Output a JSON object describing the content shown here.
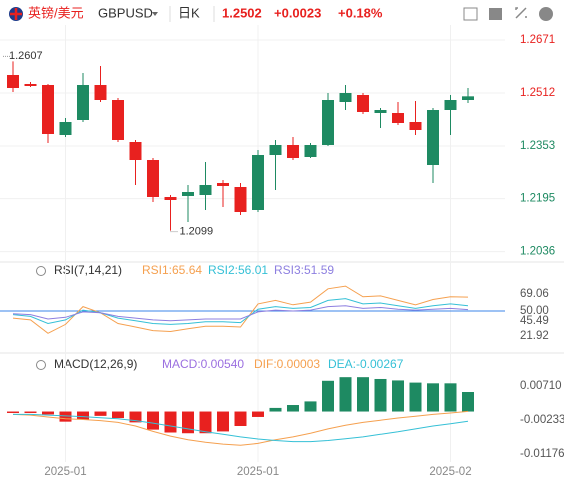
{
  "header": {
    "name": "英镑/美元",
    "symbol": "GBPUSD",
    "period": "日K",
    "price": "1.2502",
    "change": "+0.0023",
    "change_pct": "+0.18%"
  },
  "chart_data": [
    {
      "type": "candlestick",
      "categories": [
        null,
        null,
        null,
        "2025-01",
        null,
        null,
        null,
        null,
        null,
        null,
        null,
        null,
        null,
        null,
        "2025-01",
        null,
        null,
        null,
        null,
        null,
        null,
        null,
        null,
        null,
        null,
        "2025-02",
        null
      ],
      "open": [
        1.2566,
        1.2539,
        1.2536,
        1.2386,
        1.2431,
        1.2536,
        1.2491,
        1.2365,
        1.2311,
        1.22,
        1.2203,
        1.2206,
        1.2242,
        1.223,
        1.2161,
        1.2326,
        1.2356,
        1.232,
        1.2356,
        1.2485,
        1.2506,
        1.2452,
        1.2452,
        1.2425,
        1.2296,
        1.2461,
        1.2491
      ],
      "high": [
        1.2607,
        1.2545,
        1.2539,
        1.2437,
        1.2572,
        1.2593,
        1.2497,
        1.2371,
        1.2317,
        1.2206,
        1.2236,
        1.2305,
        1.2251,
        1.2242,
        1.2341,
        1.2371,
        1.238,
        1.2362,
        1.2512,
        1.2536,
        1.2512,
        1.2467,
        1.2485,
        1.2488,
        1.2467,
        1.2506,
        1.2527
      ],
      "low": [
        1.2515,
        1.253,
        1.2362,
        1.238,
        1.2425,
        1.2485,
        1.2365,
        1.2236,
        1.2185,
        1.2099,
        1.2125,
        1.2161,
        1.217,
        1.2146,
        1.2155,
        1.2221,
        1.2311,
        1.2317,
        1.2353,
        1.2461,
        1.2449,
        1.2407,
        1.2416,
        1.2386,
        1.2242,
        1.2386,
        1.2482
      ],
      "close": [
        1.2527,
        1.2533,
        1.2389,
        1.2425,
        1.2536,
        1.2491,
        1.2371,
        1.2311,
        1.22,
        1.2191,
        1.2215,
        1.2236,
        1.2233,
        1.2155,
        1.2326,
        1.2356,
        1.2317,
        1.2356,
        1.2491,
        1.2512,
        1.2455,
        1.2461,
        1.2422,
        1.2401,
        1.2461,
        1.2491,
        1.2502
      ],
      "up_color": "#1e8a62",
      "down_color": "#e8211f",
      "ylim": [
        1.2017,
        1.2716
      ],
      "yticks": [
        1.2671,
        1.2512,
        1.2353,
        1.2195,
        1.2036
      ],
      "annotations": [
        "1.2607",
        "1.2099"
      ],
      "grid": true
    },
    {
      "type": "line",
      "title": "RSI(7,14,21)",
      "series": [
        {
          "name": "RSI1:65.64",
          "color": "#f5a04f",
          "values": [
            42,
            40,
            25,
            35,
            55,
            48,
            36,
            32,
            28,
            27,
            30,
            33,
            33,
            32,
            58,
            62,
            57,
            60,
            75,
            78,
            66,
            67,
            62,
            57,
            63,
            66,
            65.64
          ]
        },
        {
          "name": "RSI2:56.01",
          "color": "#35c0d6",
          "values": [
            46,
            44,
            36,
            40,
            51,
            48,
            42,
            39,
            36,
            35,
            36,
            38,
            38,
            37,
            52,
            55,
            53,
            54,
            62,
            64,
            58,
            59,
            56,
            53,
            56,
            58,
            56.01
          ]
        },
        {
          "name": "RSI3:51.59",
          "color": "#8d7fe0",
          "values": [
            47,
            46,
            41,
            43,
            49,
            48,
            44,
            42,
            40,
            39,
            40,
            41,
            41,
            41,
            49,
            51,
            50,
            51,
            55,
            56,
            53,
            54,
            52,
            51,
            52,
            53,
            51.59
          ]
        }
      ],
      "ylim": [
        6.2,
        81.5
      ],
      "yticks": [
        69.06,
        {
          "value": 50,
          "label": "50.00"
        },
        45.49,
        21.92
      ],
      "reference_line": 50,
      "reference_color": "#3b86e8"
    },
    {
      "type": "macd",
      "title": "MACD(12,26,9)",
      "bars": {
        "name": "MACD:0.00540",
        "color": "#9b6fe0",
        "up_color": "#1e8a62",
        "down_color": "#e8211f",
        "values": [
          -0.0004,
          -0.0004,
          -0.0008,
          -0.0028,
          -0.0022,
          -0.0012,
          -0.0018,
          -0.003,
          -0.005,
          -0.0058,
          -0.006,
          -0.006,
          -0.0055,
          -0.004,
          -0.0015,
          0.001,
          0.0018,
          0.0028,
          0.0085,
          0.0095,
          0.0095,
          0.009,
          0.0086,
          0.008,
          0.0078,
          0.0078,
          0.0054
        ]
      },
      "series": [
        {
          "name": "DIF:0.00003",
          "color": "#f5a04f",
          "values": [
            -0.0008,
            -0.001,
            -0.0015,
            -0.002,
            -0.0022,
            -0.0025,
            -0.003,
            -0.004,
            -0.0055,
            -0.0068,
            -0.0078,
            -0.0085,
            -0.009,
            -0.0093,
            -0.0088,
            -0.0078,
            -0.007,
            -0.006,
            -0.0048,
            -0.0038,
            -0.003,
            -0.0024,
            -0.0018,
            -0.0013,
            -0.0008,
            -0.0004,
            3e-05
          ]
        },
        {
          "name": "DEA:-0.00267",
          "color": "#35c0d6",
          "values": [
            -0.0008,
            -0.0008,
            -0.001,
            -0.0012,
            -0.0014,
            -0.0017,
            -0.002,
            -0.0025,
            -0.0032,
            -0.004,
            -0.0048,
            -0.0056,
            -0.0063,
            -0.007,
            -0.0076,
            -0.008,
            -0.0083,
            -0.0083,
            -0.008,
            -0.0075,
            -0.007,
            -0.0063,
            -0.0056,
            -0.0048,
            -0.004,
            -0.0034,
            -0.00267
          ]
        }
      ],
      "ylim": [
        -0.0134,
        0.0101
      ],
      "yticks": [
        {
          "value": 0.0071,
          "label": "0.00710"
        },
        -0.00233,
        -0.01176
      ]
    }
  ]
}
